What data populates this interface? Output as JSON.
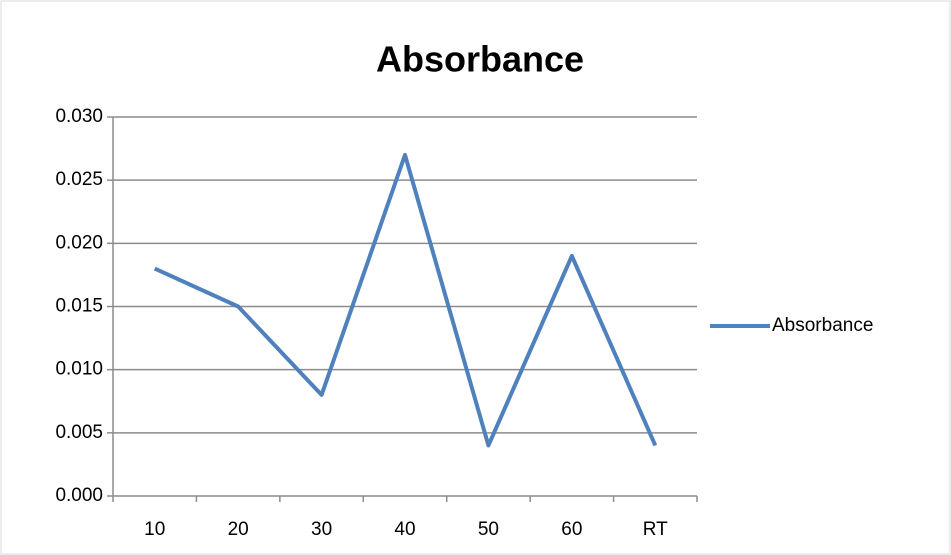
{
  "chart_data": {
    "type": "line",
    "title": "Absorbance",
    "categories": [
      "10",
      "20",
      "30",
      "40",
      "50",
      "60",
      "RT"
    ],
    "series": [
      {
        "name": "Absorbance",
        "color": "#4f81bd",
        "values": [
          0.018,
          0.015,
          0.008,
          0.027,
          0.004,
          0.019,
          0.004
        ]
      }
    ],
    "ylim": [
      0,
      0.03
    ],
    "yticks": [
      {
        "value": 0,
        "label": "0.000"
      },
      0.005,
      {
        "value": 0.01,
        "label": "0.010"
      },
      0.015,
      {
        "value": 0.02,
        "label": "0.020"
      },
      0.025,
      {
        "value": 0.03,
        "label": "0.030"
      }
    ],
    "grid": true,
    "legend": "right"
  }
}
